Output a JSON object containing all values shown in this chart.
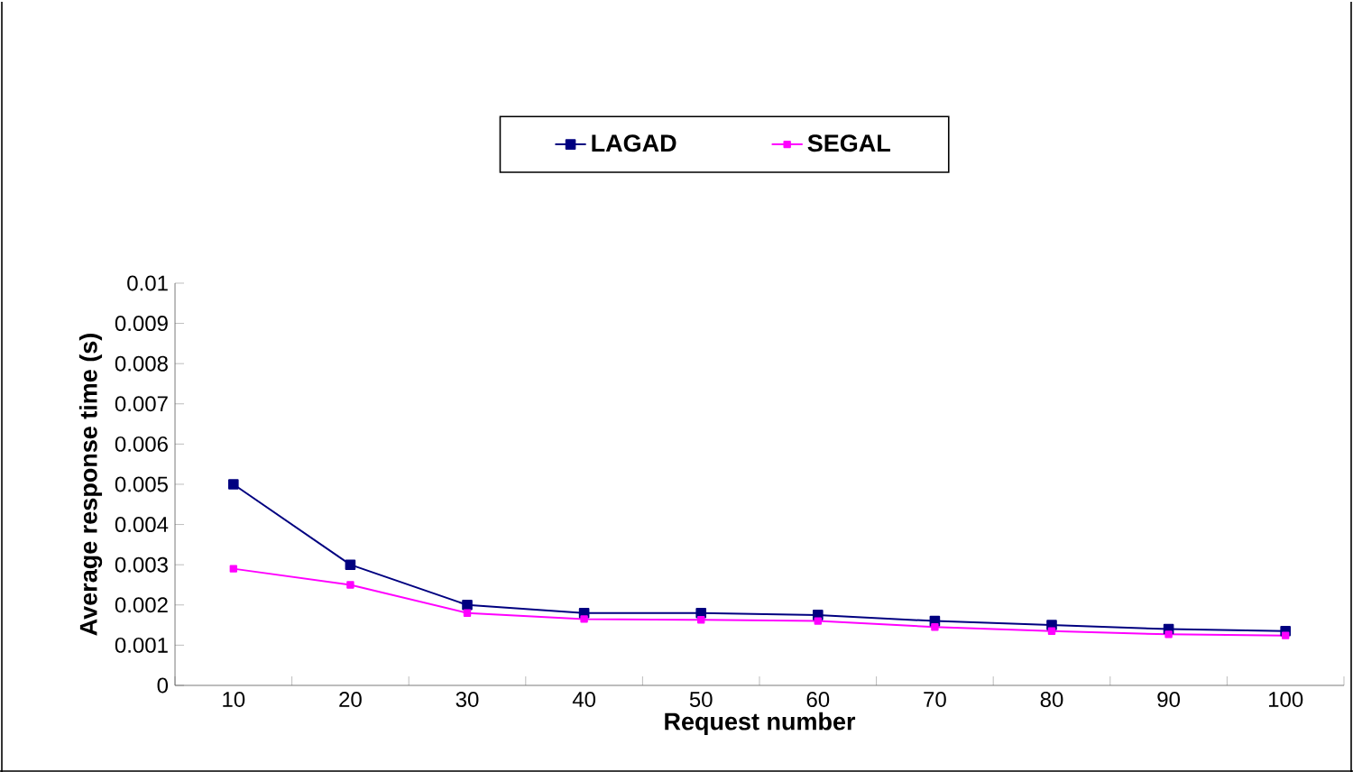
{
  "chart_data": {
    "type": "line",
    "xlabel": "Request number",
    "ylabel": "Average response time (s)",
    "categories": [
      "10",
      "20",
      "30",
      "40",
      "50",
      "60",
      "70",
      "80",
      "90",
      "100"
    ],
    "series": [
      {
        "name": "LAGAD",
        "color": "#000080",
        "values": [
          0.005,
          0.003,
          0.002,
          0.0018,
          0.0018,
          0.00175,
          0.0016,
          0.0015,
          0.0014,
          0.00135
        ]
      },
      {
        "name": "SEGAL",
        "color": "#ff00ff",
        "values": [
          0.0029,
          0.0025,
          0.0018,
          0.00165,
          0.00163,
          0.0016,
          0.00145,
          0.00135,
          0.00127,
          0.00124
        ]
      }
    ],
    "ylim": [
      0,
      0.01
    ],
    "yticks": [
      0,
      0.001,
      0.002,
      0.003,
      0.004,
      0.005,
      0.006,
      0.007,
      0.008,
      0.009,
      0.01
    ],
    "marker": "square",
    "line_style": "solid",
    "legend": "top",
    "grid": false
  }
}
